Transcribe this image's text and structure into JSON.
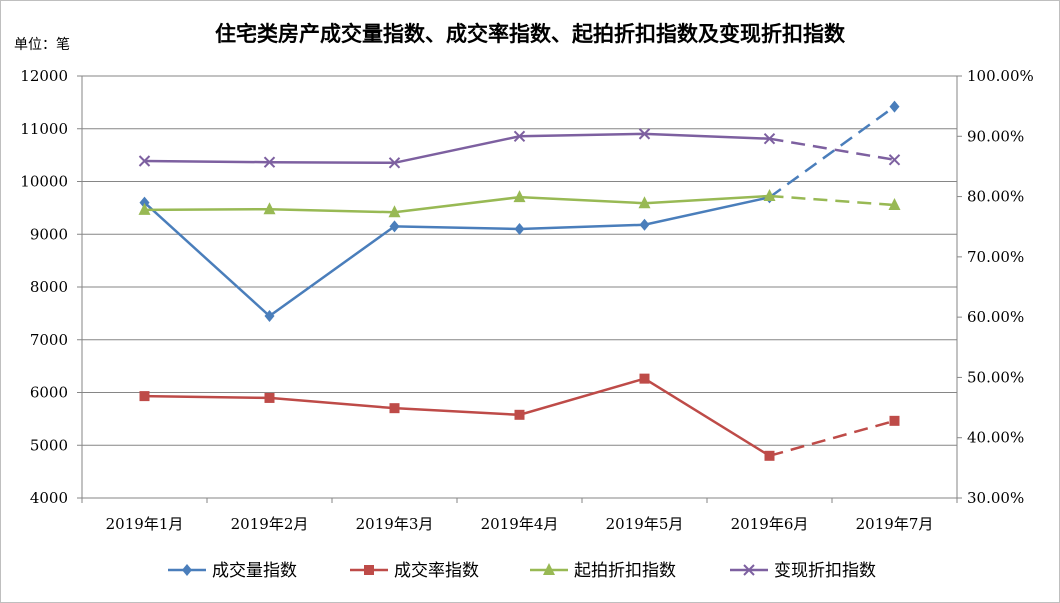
{
  "chart_data": {
    "type": "line",
    "title": "住宅类房产成交量指数、成交率指数、起拍折扣指数及变现折扣指数",
    "unit_label": "单位：笔",
    "categories": [
      "2019年1月",
      "2019年2月",
      "2019年3月",
      "2019年4月",
      "2019年5月",
      "2019年6月",
      "2019年7月"
    ],
    "y_left": {
      "min": 4000,
      "max": 12000,
      "step": 1000,
      "ticks": [
        "4000",
        "5000",
        "6000",
        "7000",
        "8000",
        "9000",
        "10000",
        "11000",
        "12000"
      ]
    },
    "y_right": {
      "min": 30,
      "max": 100,
      "step": 10,
      "ticks": [
        "30.00%",
        "40.00%",
        "50.00%",
        "60.00%",
        "70.00%",
        "80.00%",
        "90.00%",
        "100.00%"
      ]
    },
    "grid": true,
    "legend_position": "bottom",
    "dashed_last_segment": true,
    "series": [
      {
        "name": "成交量指数",
        "axis": "left",
        "color": "#4a7ebb",
        "marker": "diamond",
        "values": [
          9600,
          7450,
          9150,
          9100,
          9180,
          9700,
          11420
        ]
      },
      {
        "name": "成交率指数",
        "axis": "right",
        "color": "#be4b48",
        "marker": "square",
        "values": [
          46.9,
          46.6,
          44.9,
          43.8,
          49.8,
          37.0,
          42.8
        ]
      },
      {
        "name": "起拍折扣指数",
        "axis": "right",
        "color": "#98b954",
        "marker": "triangle",
        "values": [
          77.8,
          77.9,
          77.4,
          79.9,
          78.9,
          80.1,
          78.6
        ]
      },
      {
        "name": "变现折扣指数",
        "axis": "right",
        "color": "#7d60a0",
        "marker": "x",
        "values": [
          85.9,
          85.7,
          85.6,
          90.0,
          90.4,
          89.6,
          86.1
        ]
      }
    ]
  }
}
